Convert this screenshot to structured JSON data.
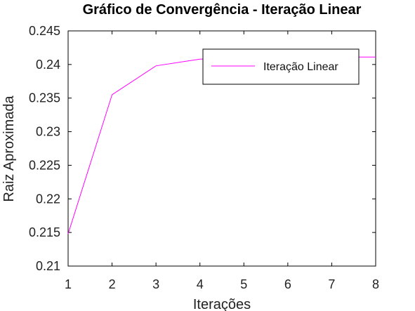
{
  "chart_data": {
    "type": "line",
    "title": "Gráfico de Convergência - Iteração Linear",
    "xlabel": "Iterações",
    "ylabel": "Raiz Aproximada",
    "xlim": [
      1,
      8
    ],
    "ylim": [
      0.21,
      0.245
    ],
    "xticks": [
      1,
      2,
      3,
      4,
      5,
      6,
      7,
      8
    ],
    "yticks": [
      0.21,
      0.215,
      0.22,
      0.225,
      0.23,
      0.235,
      0.24,
      0.245
    ],
    "ytick_labels": [
      "0.21",
      "0.215",
      "0.22",
      "0.225",
      "0.23",
      "0.235",
      "0.24",
      "0.245"
    ],
    "grid": false,
    "legend_position": "top-right",
    "series": [
      {
        "name": "Iteração Linear",
        "color": "#ff00ff",
        "x": [
          1,
          2,
          3,
          4,
          5,
          6,
          7,
          8
        ],
        "y": [
          0.2148,
          0.2355,
          0.2398,
          0.2408,
          0.241,
          0.2411,
          0.2411,
          0.2411
        ]
      }
    ]
  }
}
